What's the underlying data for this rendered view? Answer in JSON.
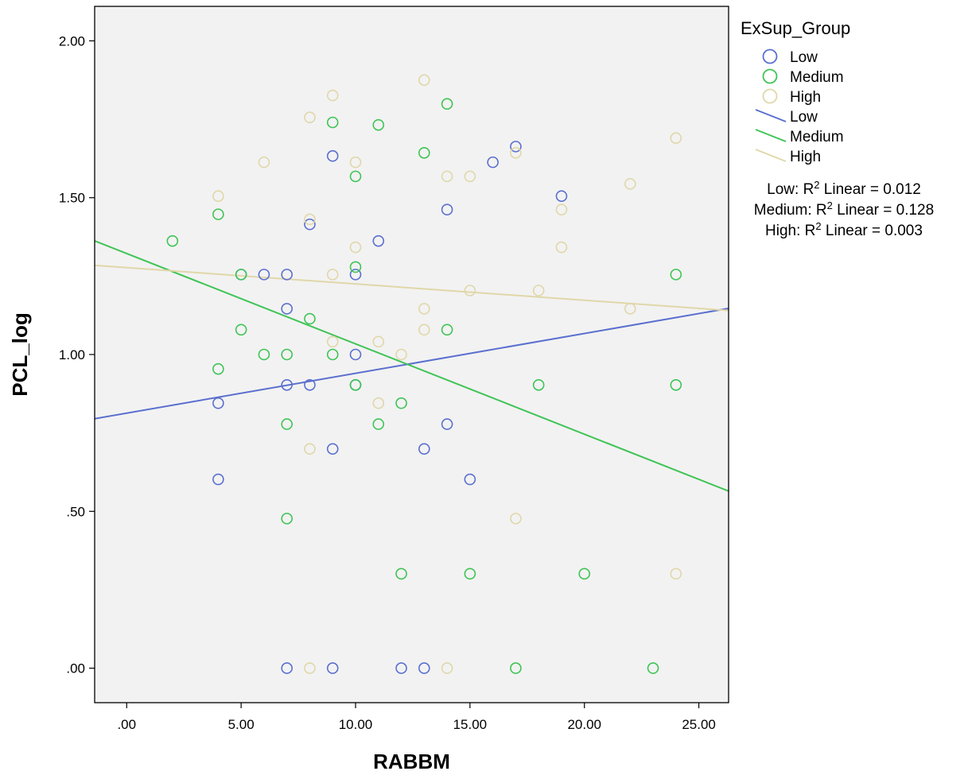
{
  "chart_data": {
    "type": "scatter",
    "xlabel": "RABBM",
    "ylabel": "PCL_log",
    "xlim": [
      -1.4,
      26.3
    ],
    "ylim": [
      -0.11,
      2.11
    ],
    "x_ticks": [
      0,
      5,
      10,
      15,
      20,
      25
    ],
    "x_tick_labels": [
      ".00",
      "5.00",
      "10.00",
      "15.00",
      "20.00",
      "25.00"
    ],
    "y_ticks": [
      0,
      0.5,
      1.0,
      1.5,
      2.0
    ],
    "y_tick_labels": [
      ".00",
      ".50",
      "1.00",
      "1.50",
      "2.00"
    ],
    "grid": false,
    "legend_position": "right",
    "legend_title": "ExSup_Group",
    "colors": {
      "Low": "#5a6fcf",
      "Medium": "#3fc455",
      "High": "#e0d7a9",
      "plot_bg": "#f2f2f2"
    },
    "series": [
      {
        "name": "Low",
        "points": [
          [
            4,
            0.845
          ],
          [
            4,
            0.602
          ],
          [
            5,
            1.255
          ],
          [
            6,
            1.255
          ],
          [
            7,
            1.255
          ],
          [
            7,
            1.146
          ],
          [
            7,
            0.903
          ],
          [
            7,
            0
          ],
          [
            8,
            1.415
          ],
          [
            8,
            0.903
          ],
          [
            9,
            1.633
          ],
          [
            9,
            0.699
          ],
          [
            9,
            0
          ],
          [
            10,
            1.255
          ],
          [
            10,
            1.0
          ],
          [
            10,
            0.903
          ],
          [
            11,
            1.362
          ],
          [
            12,
            0
          ],
          [
            13,
            0.699
          ],
          [
            13,
            0
          ],
          [
            14,
            1.462
          ],
          [
            14,
            0.778
          ],
          [
            15,
            0.602
          ],
          [
            16,
            1.613
          ],
          [
            17,
            1.663
          ],
          [
            19,
            1.505
          ]
        ],
        "fit": {
          "intercept": 0.813,
          "slope": 0.0127
        }
      },
      {
        "name": "Medium",
        "points": [
          [
            2,
            1.362
          ],
          [
            4,
            1.447
          ],
          [
            4,
            0.954
          ],
          [
            5,
            1.255
          ],
          [
            5,
            1.079
          ],
          [
            6,
            1.0
          ],
          [
            7,
            1.0
          ],
          [
            7,
            0.778
          ],
          [
            7,
            0.477
          ],
          [
            8,
            1.114
          ],
          [
            9,
            1.74
          ],
          [
            9,
            1.0
          ],
          [
            10,
            1.568
          ],
          [
            10,
            1.279
          ],
          [
            10,
            0.903
          ],
          [
            11,
            1.732
          ],
          [
            11,
            0.778
          ],
          [
            12,
            0.845
          ],
          [
            12,
            0.301
          ],
          [
            13,
            1.643
          ],
          [
            14,
            1.799
          ],
          [
            14,
            1.079
          ],
          [
            15,
            0.301
          ],
          [
            17,
            0
          ],
          [
            18,
            0.903
          ],
          [
            20,
            0.301
          ],
          [
            23,
            0
          ],
          [
            24,
            1.255
          ],
          [
            24,
            0.903
          ]
        ],
        "fit": {
          "intercept": 1.322,
          "slope": -0.0288
        }
      },
      {
        "name": "High",
        "points": [
          [
            4,
            1.505
          ],
          [
            6,
            1.613
          ],
          [
            8,
            1.756
          ],
          [
            8,
            1.431
          ],
          [
            8,
            0.699
          ],
          [
            8,
            0
          ],
          [
            9,
            1.826
          ],
          [
            9,
            1.255
          ],
          [
            9,
            1.041
          ],
          [
            10,
            1.613
          ],
          [
            10,
            1.342
          ],
          [
            11,
            1.041
          ],
          [
            11,
            0.845
          ],
          [
            12,
            1.0
          ],
          [
            13,
            1.875
          ],
          [
            13,
            1.146
          ],
          [
            13,
            1.079
          ],
          [
            14,
            1.568
          ],
          [
            14,
            0
          ],
          [
            15,
            1.568
          ],
          [
            15,
            1.204
          ],
          [
            17,
            1.643
          ],
          [
            17,
            0.477
          ],
          [
            18,
            1.204
          ],
          [
            19,
            1.462
          ],
          [
            19,
            1.342
          ],
          [
            22,
            1.544
          ],
          [
            22,
            1.146
          ],
          [
            24,
            1.69
          ],
          [
            24,
            0.301
          ]
        ],
        "fit": {
          "intercept": 1.277,
          "slope": -0.0052
        }
      }
    ],
    "fit_legend": [
      "Low",
      "Medium",
      "High"
    ],
    "annotations": [
      {
        "prefix": "Low: R",
        "sup": "2",
        "suffix": " Linear = 0.012"
      },
      {
        "prefix": "Medium: R",
        "sup": "2",
        "suffix": " Linear = 0.128"
      },
      {
        "prefix": "High: R",
        "sup": "2",
        "suffix": " Linear = 0.003"
      }
    ]
  }
}
